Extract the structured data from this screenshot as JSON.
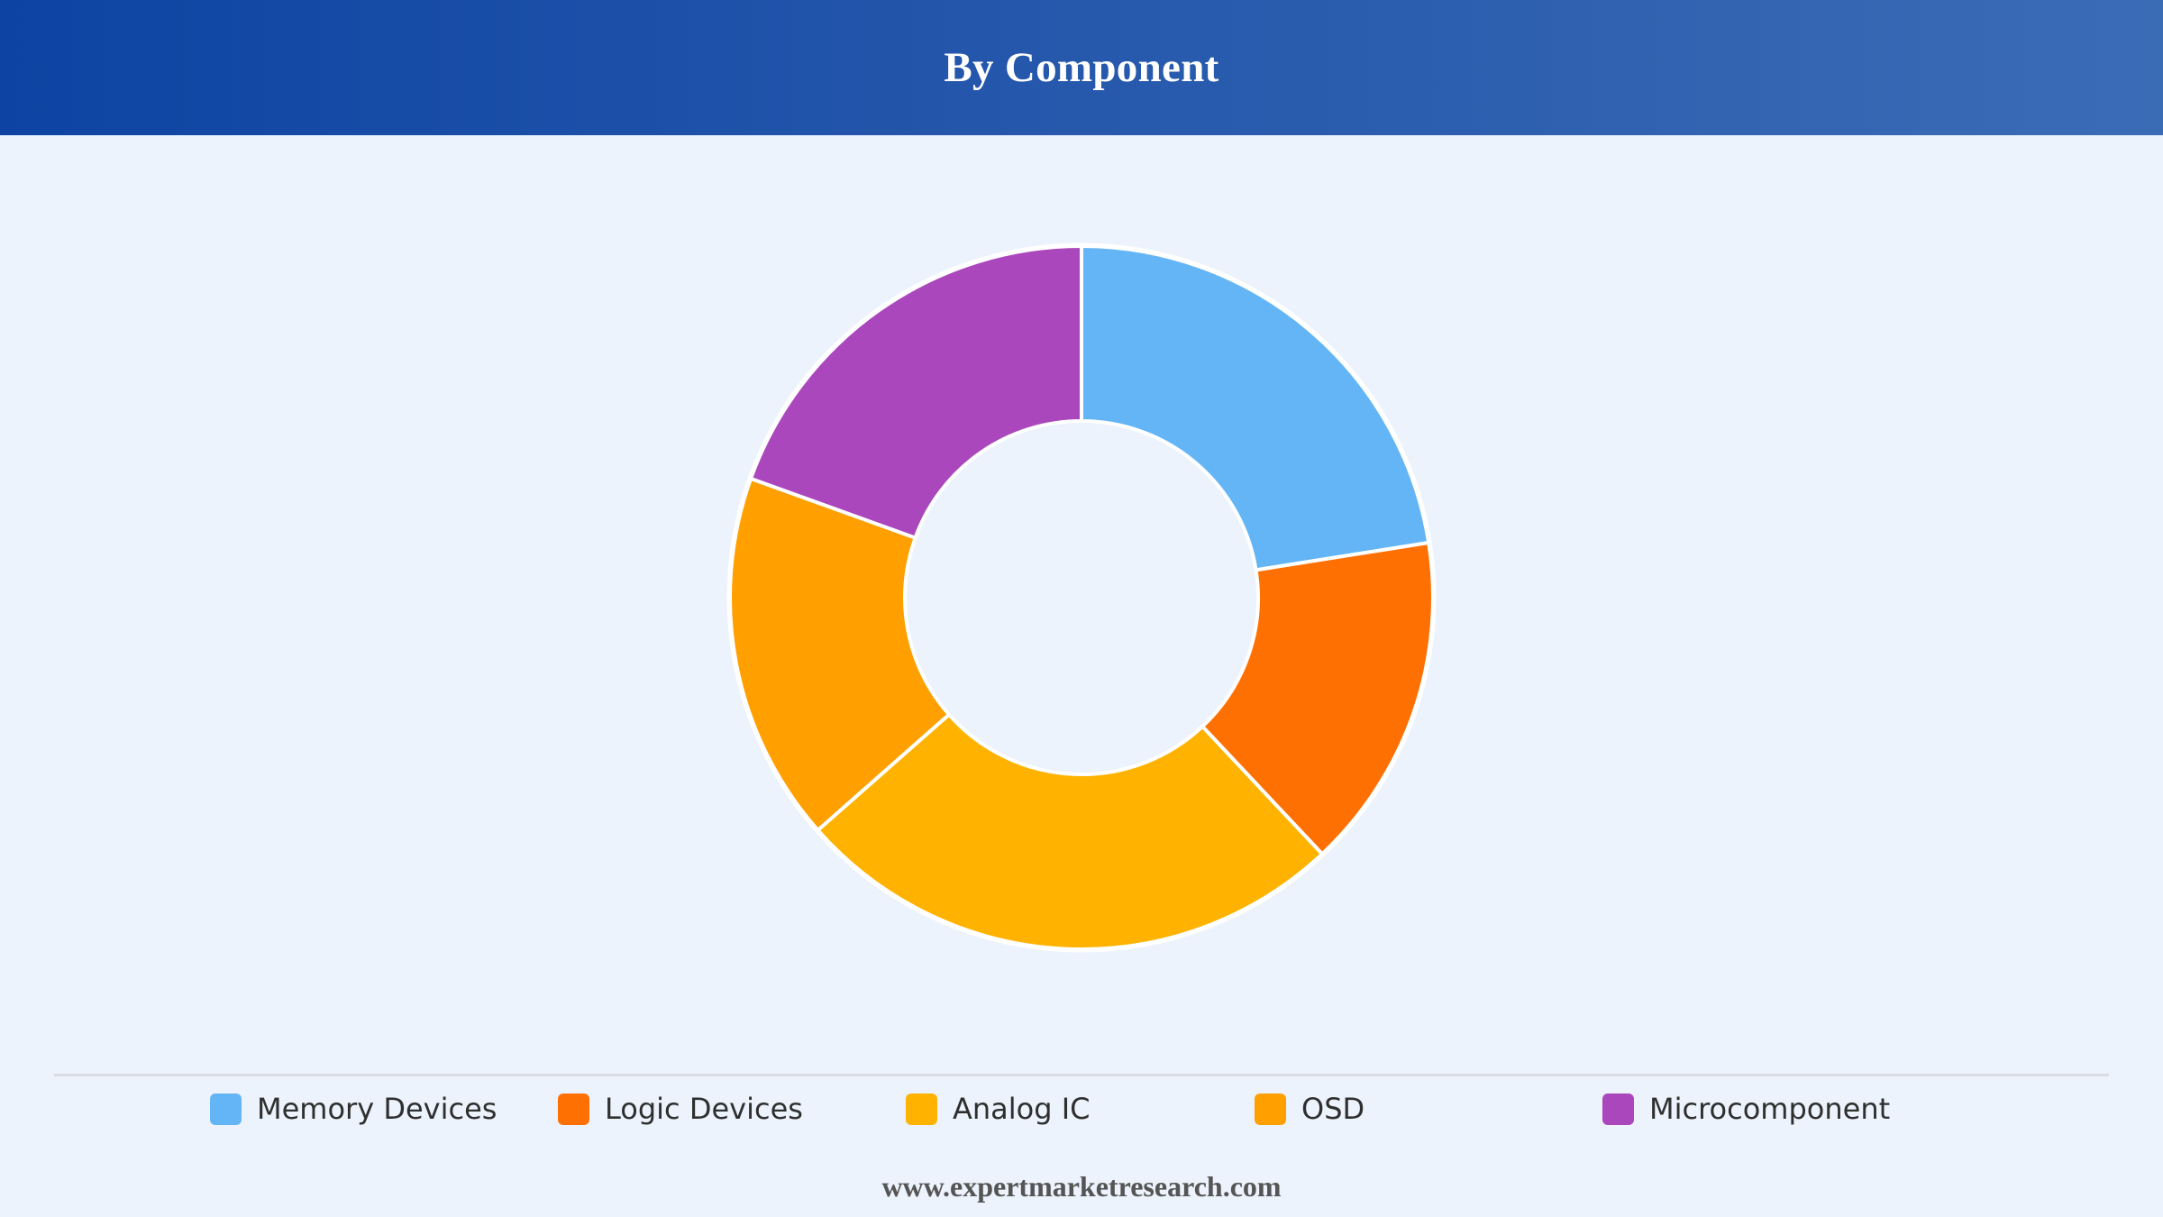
{
  "header": {
    "title": "By Component"
  },
  "chart_data": {
    "type": "pie",
    "variant": "donut",
    "title": "By Component",
    "categories": [
      "Memory Devices",
      "Logic Devices",
      "Analog IC",
      "OSD",
      "Microcomponent"
    ],
    "values": [
      22.5,
      15.5,
      25.5,
      17,
      19.5
    ],
    "unit": "%",
    "colors": [
      "#64b5f6",
      "#ff7003",
      "#ffb300",
      "#ffa000",
      "#ab47bc"
    ],
    "start_angle_deg": 0,
    "direction": "clockwise",
    "legend": "bottom"
  },
  "legend": {
    "items": [
      {
        "label": "Memory Devices",
        "color": "#64b5f6"
      },
      {
        "label": "Logic Devices",
        "color": "#ff7003"
      },
      {
        "label": "Analog IC",
        "color": "#ffb300"
      },
      {
        "label": "OSD",
        "color": "#ffa000"
      },
      {
        "label": "Microcomponent",
        "color": "#ab47bc"
      }
    ]
  },
  "footer": {
    "source_text": "www.expertmarketresearch.com"
  },
  "colors": {
    "background": "#ecf3fc",
    "header_start": "#0d44a3",
    "header_end": "#3a6cb6",
    "slice_border": "#ffffff"
  }
}
